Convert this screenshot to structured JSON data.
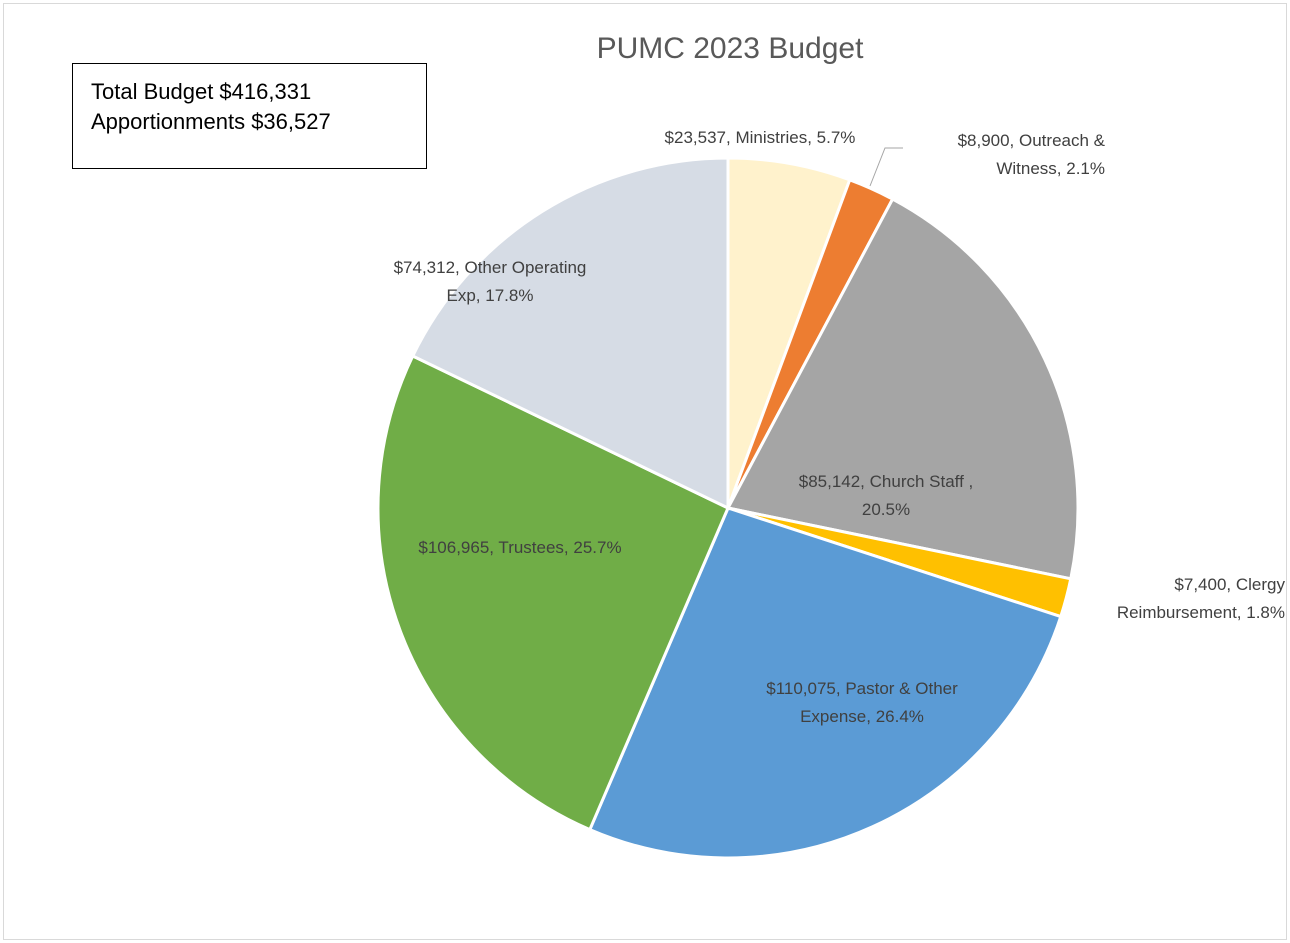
{
  "chart_data": {
    "type": "pie",
    "title": "PUMC 2023 Budget",
    "slices": [
      {
        "label": "Ministries",
        "value": 23537,
        "percent": 5.7,
        "color": "#FFF2CC",
        "label_lines": [
          "$23,537, Ministries, 5.7%"
        ]
      },
      {
        "label": "Outreach & Witness",
        "value": 8900,
        "percent": 2.1,
        "color": "#ED7D31",
        "label_lines": [
          "$8,900, Outreach &",
          "Witness, 2.1%"
        ]
      },
      {
        "label": "Church Staff",
        "value": 85142,
        "percent": 20.5,
        "color": "#A5A5A5",
        "label_lines": [
          "$85,142, Church Staff ,",
          "20.5%"
        ]
      },
      {
        "label": "Clergy Reimbursement",
        "value": 7400,
        "percent": 1.8,
        "color": "#FFC000",
        "label_lines": [
          "$7,400, Clergy",
          "Reimbursement, 1.8%"
        ]
      },
      {
        "label": "Pastor & Other Expense",
        "value": 110075,
        "percent": 26.4,
        "color": "#5B9BD5",
        "label_lines": [
          "$110,075, Pastor & Other",
          "Expense, 26.4%"
        ]
      },
      {
        "label": "Trustees",
        "value": 106965,
        "percent": 25.7,
        "color": "#70AD47",
        "label_lines": [
          "$106,965, Trustees, 25.7%"
        ]
      },
      {
        "label": "Other Operating Exp",
        "value": 74312,
        "percent": 17.8,
        "color": "#D6DCE5",
        "label_lines": [
          "$74,312, Other Operating",
          "Exp, 17.8%"
        ]
      }
    ],
    "annotation": {
      "line1": "Total Budget $416,331",
      "line2": "Apportionments $36,527"
    }
  }
}
